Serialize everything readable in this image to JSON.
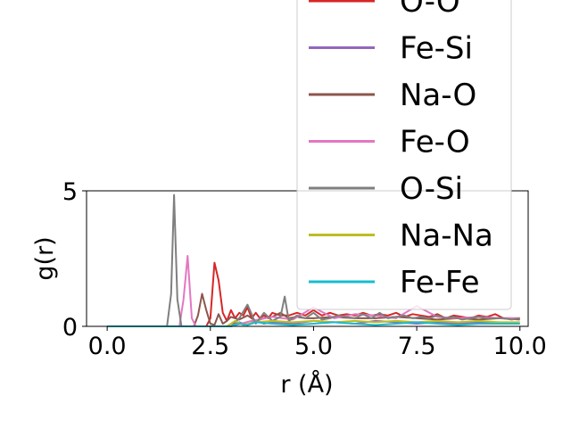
{
  "chart_data": {
    "type": "line",
    "title": "",
    "xlabel": "r (Å)",
    "ylabel": "g(r)",
    "xlim": [
      -0.5,
      10.2
    ],
    "ylim": [
      0,
      5
    ],
    "xticks": [
      0.0,
      2.5,
      5.0,
      7.5,
      10.0
    ],
    "xtick_labels": [
      "0.0",
      "2.5",
      "5.0",
      "7.5",
      "10.0"
    ],
    "yticks": [
      0,
      5
    ],
    "ytick_labels": [
      "0",
      "5"
    ],
    "grid": false,
    "legend_placement": "top-right",
    "series": [
      {
        "name": "O-O",
        "color": "#d62728",
        "x": [
          0.0,
          2.4,
          2.5,
          2.6,
          2.7,
          2.8,
          2.9,
          3.0,
          3.1,
          3.2,
          3.3,
          3.4,
          3.5,
          3.6,
          3.7,
          3.8,
          3.9,
          4.0,
          4.2,
          4.4,
          4.6,
          4.8,
          5.0,
          5.2,
          5.4,
          5.6,
          5.8,
          6.0,
          6.2,
          6.4,
          6.6,
          6.8,
          7.0,
          7.2,
          7.4,
          7.6,
          7.8,
          8.0,
          8.2,
          8.4,
          8.6,
          8.8,
          9.0,
          9.2,
          9.4,
          9.6,
          9.8,
          10.0
        ],
        "y": [
          0.0,
          0.0,
          0.3,
          2.35,
          1.7,
          0.5,
          0.2,
          0.6,
          0.3,
          0.5,
          0.4,
          0.7,
          0.3,
          0.5,
          0.3,
          0.4,
          0.3,
          0.5,
          0.4,
          0.4,
          0.5,
          0.4,
          0.6,
          0.4,
          0.5,
          0.4,
          0.45,
          0.4,
          0.5,
          0.4,
          0.45,
          0.4,
          0.5,
          0.35,
          0.45,
          0.4,
          0.35,
          0.45,
          0.3,
          0.4,
          0.35,
          0.3,
          0.4,
          0.35,
          0.45,
          0.3,
          0.3,
          0.3
        ]
      },
      {
        "name": "Fe-Si",
        "color": "#9467bd",
        "x": [
          0.0,
          3.0,
          3.2,
          3.4,
          3.6,
          3.8,
          4.0,
          4.5,
          5.0,
          5.5,
          6.0,
          6.5,
          7.0,
          7.5,
          8.0,
          8.5,
          9.0,
          9.5,
          10.0
        ],
        "y": [
          0.0,
          0.0,
          0.15,
          0.05,
          0.2,
          0.1,
          0.15,
          0.1,
          0.2,
          0.15,
          0.1,
          0.2,
          0.15,
          0.1,
          0.15,
          0.1,
          0.15,
          0.1,
          0.1
        ]
      },
      {
        "name": "Na-O",
        "color": "#8c564b",
        "x": [
          0.0,
          2.1,
          2.2,
          2.3,
          2.4,
          2.5,
          2.6,
          2.7,
          2.8,
          2.9,
          3.0,
          3.2,
          3.4,
          3.6,
          3.8,
          4.0,
          4.2,
          4.4,
          4.6,
          4.8,
          5.0,
          5.5,
          6.0,
          6.5,
          7.0,
          7.5,
          8.0,
          8.5,
          9.0,
          9.5,
          10.0
        ],
        "y": [
          0.0,
          0.0,
          0.4,
          1.2,
          0.6,
          0.1,
          0.05,
          0.45,
          0.1,
          0.2,
          0.35,
          0.25,
          0.4,
          0.2,
          0.3,
          0.35,
          0.5,
          0.3,
          0.35,
          0.3,
          0.3,
          0.35,
          0.3,
          0.3,
          0.35,
          0.3,
          0.25,
          0.3,
          0.25,
          0.3,
          0.25
        ]
      },
      {
        "name": "Fe-O",
        "color": "#e377c2",
        "x": [
          0.0,
          1.75,
          1.85,
          1.95,
          2.05,
          2.15,
          3.0,
          3.5,
          4.0,
          4.5,
          5.0,
          5.5,
          6.0,
          6.5,
          7.0,
          7.5,
          8.0,
          8.5,
          9.0,
          9.5,
          10.0
        ],
        "y": [
          0.0,
          0.0,
          1.0,
          2.6,
          0.3,
          0.0,
          0.0,
          0.2,
          0.35,
          0.25,
          0.7,
          0.3,
          0.45,
          0.4,
          0.3,
          0.75,
          0.35,
          0.3,
          0.35,
          0.3,
          0.3
        ]
      },
      {
        "name": "O-Si",
        "color": "#7f7f7f",
        "x": [
          0.0,
          1.45,
          1.55,
          1.62,
          1.7,
          1.8,
          3.0,
          3.2,
          3.4,
          3.6,
          3.8,
          4.0,
          4.2,
          4.3,
          4.4,
          4.6,
          4.8,
          5.0,
          5.2,
          5.4,
          5.6,
          5.8,
          6.0,
          6.2,
          6.4,
          6.6,
          6.8,
          7.0,
          7.2,
          7.4,
          7.6,
          7.8,
          8.0,
          8.2,
          8.4,
          8.6,
          8.8,
          9.0,
          9.2,
          9.4,
          9.6,
          9.8,
          10.0
        ],
        "y": [
          0.0,
          0.0,
          1.2,
          4.85,
          1.0,
          0.0,
          0.0,
          0.3,
          0.8,
          0.1,
          0.5,
          0.2,
          0.35,
          1.1,
          0.2,
          0.4,
          0.3,
          0.5,
          0.25,
          0.3,
          0.4,
          0.35,
          0.3,
          0.45,
          0.3,
          0.5,
          0.3,
          0.35,
          0.4,
          0.3,
          0.35,
          0.3,
          0.4,
          0.3,
          0.35,
          0.25,
          0.3,
          0.35,
          0.3,
          0.3,
          0.3,
          0.25,
          0.3
        ]
      },
      {
        "name": "Na-Na",
        "color": "#bcbd22",
        "x": [
          0.0,
          2.9,
          3.1,
          3.3,
          3.6,
          4.0,
          4.5,
          5.0,
          5.5,
          6.0,
          6.5,
          7.0,
          7.5,
          8.0,
          8.5,
          9.0,
          9.5,
          10.0
        ],
        "y": [
          0.0,
          0.0,
          0.2,
          0.05,
          0.15,
          0.2,
          0.15,
          0.2,
          0.15,
          0.2,
          0.15,
          0.2,
          0.15,
          0.2,
          0.15,
          0.2,
          0.15,
          0.15
        ]
      },
      {
        "name": "Fe-Fe",
        "color": "#17becf",
        "x": [
          0.0,
          3.0,
          3.2,
          3.4,
          3.6,
          4.0,
          4.5,
          5.0,
          5.5,
          6.0,
          6.5,
          7.0,
          7.5,
          8.0,
          8.5,
          9.0,
          9.5,
          10.0
        ],
        "y": [
          0.0,
          0.0,
          0.1,
          0.05,
          0.15,
          0.1,
          0.05,
          0.1,
          0.15,
          0.1,
          0.05,
          0.1,
          0.15,
          0.1,
          0.05,
          0.1,
          0.1,
          0.1
        ]
      }
    ]
  }
}
